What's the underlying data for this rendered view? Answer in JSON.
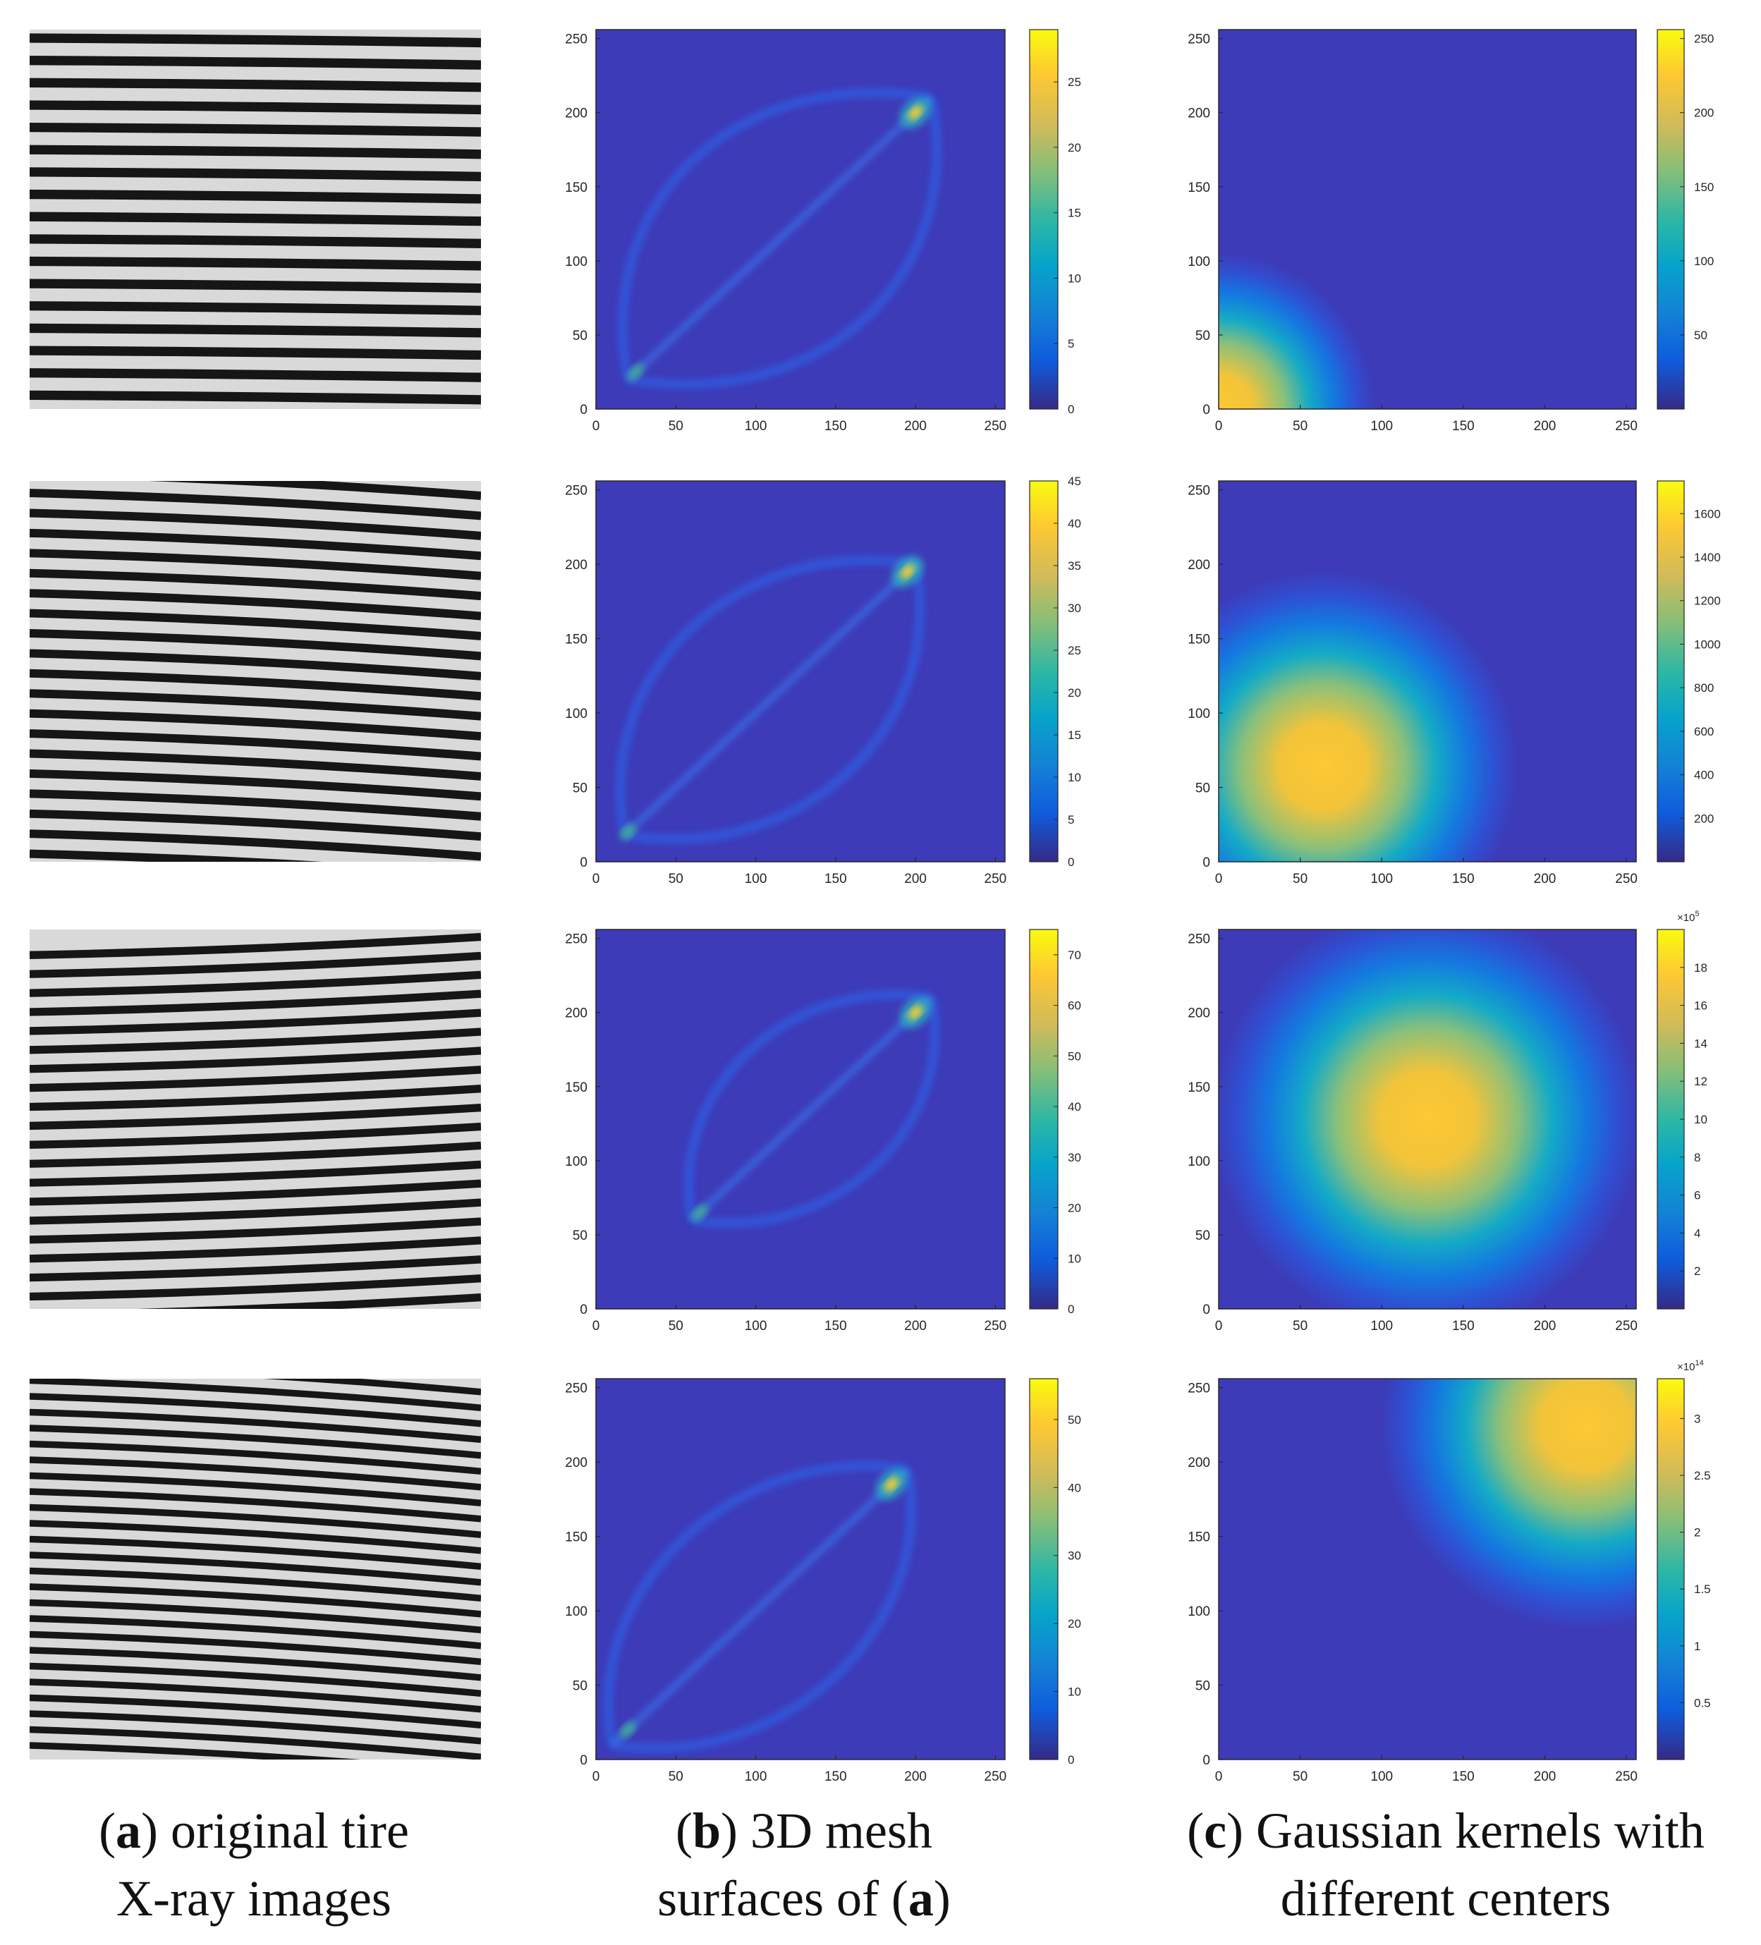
{
  "chart_data": [
    {
      "type": "image",
      "panel": "a",
      "row": 1,
      "stripes": 17,
      "bend": 0.01
    },
    {
      "type": "image",
      "panel": "a",
      "row": 2,
      "stripes": 19,
      "bend": 0.05
    },
    {
      "type": "image",
      "panel": "a",
      "row": 3,
      "stripes": 20,
      "bend": -0.04
    },
    {
      "type": "image",
      "panel": "a",
      "row": 4,
      "stripes": 24,
      "bend": 0.06
    },
    {
      "type": "heatmap",
      "panel": "b",
      "row": 1,
      "xlim": [
        0,
        256
      ],
      "ylim": [
        0,
        256
      ],
      "xticks": [
        0,
        50,
        100,
        150,
        200,
        250
      ],
      "yticks": [
        0,
        50,
        100,
        150,
        200,
        250
      ],
      "colorbar": {
        "min": 0,
        "max": 29,
        "ticks": [
          0,
          5,
          10,
          15,
          20,
          25
        ]
      },
      "peak": [
        200,
        200
      ],
      "low_peak": [
        25,
        25
      ],
      "loop_bulge": 55,
      "loop_start": 20,
      "loop_end": 210
    },
    {
      "type": "heatmap",
      "panel": "b",
      "row": 2,
      "xlim": [
        0,
        256
      ],
      "ylim": [
        0,
        256
      ],
      "xticks": [
        0,
        50,
        100,
        150,
        200,
        250
      ],
      "yticks": [
        0,
        50,
        100,
        150,
        200,
        250
      ],
      "colorbar": {
        "min": 0,
        "max": 45,
        "ticks": [
          0,
          5,
          10,
          15,
          20,
          25,
          30,
          35,
          40,
          45
        ]
      },
      "peak": [
        195,
        195
      ],
      "low_peak": [
        20,
        20
      ],
      "loop_bulge": 50,
      "loop_start": 18,
      "loop_end": 200
    },
    {
      "type": "heatmap",
      "panel": "b",
      "row": 3,
      "xlim": [
        0,
        256
      ],
      "ylim": [
        0,
        256
      ],
      "xticks": [
        0,
        50,
        100,
        150,
        200,
        250
      ],
      "yticks": [
        0,
        50,
        100,
        150,
        200,
        250
      ],
      "colorbar": {
        "min": 0,
        "max": 75,
        "ticks": [
          0,
          10,
          20,
          30,
          40,
          50,
          60,
          70
        ]
      },
      "peak": [
        200,
        200
      ],
      "low_peak": [
        65,
        65
      ],
      "loop_bulge": 40,
      "loop_start": 60,
      "loop_end": 210
    },
    {
      "type": "heatmap",
      "panel": "b",
      "row": 4,
      "xlim": [
        0,
        256
      ],
      "ylim": [
        0,
        256
      ],
      "xticks": [
        0,
        50,
        100,
        150,
        200,
        250
      ],
      "yticks": [
        0,
        50,
        100,
        150,
        200,
        250
      ],
      "colorbar": {
        "min": 0,
        "max": 56,
        "ticks": [
          0,
          10,
          20,
          30,
          40,
          50
        ]
      },
      "peak": [
        185,
        185
      ],
      "low_peak": [
        20,
        20
      ],
      "loop_bulge": 48,
      "loop_start": 10,
      "loop_end": 195
    },
    {
      "type": "heatmap",
      "panel": "c",
      "row": 1,
      "xlim": [
        0,
        256
      ],
      "ylim": [
        0,
        256
      ],
      "xticks": [
        0,
        50,
        100,
        150,
        200,
        250
      ],
      "yticks": [
        0,
        50,
        100,
        150,
        200,
        250
      ],
      "colorbar": {
        "min": 0,
        "max": 256,
        "ticks": [
          50,
          100,
          150,
          200,
          250
        ]
      },
      "center": [
        0,
        0
      ],
      "sigma": 32
    },
    {
      "type": "heatmap",
      "panel": "c",
      "row": 2,
      "xlim": [
        0,
        256
      ],
      "ylim": [
        0,
        256
      ],
      "xticks": [
        0,
        50,
        100,
        150,
        200,
        250
      ],
      "yticks": [
        0,
        50,
        100,
        150,
        200,
        250
      ],
      "colorbar": {
        "min": 0,
        "max": 1750,
        "ticks": [
          200,
          400,
          600,
          800,
          1000,
          1200,
          1400,
          1600
        ]
      },
      "center": [
        64,
        64
      ],
      "sigma": 40
    },
    {
      "type": "heatmap",
      "panel": "c",
      "row": 3,
      "xlim": [
        0,
        256
      ],
      "ylim": [
        0,
        256
      ],
      "xticks": [
        0,
        50,
        100,
        150,
        200,
        250
      ],
      "yticks": [
        0,
        50,
        100,
        150,
        200,
        250
      ],
      "colorbar": {
        "min": 0,
        "max": 20,
        "ticks": [
          2,
          4,
          6,
          8,
          10,
          12,
          14,
          16,
          18
        ],
        "multiplier": "×10",
        "exponent": "5"
      },
      "center": [
        128,
        128
      ],
      "sigma": 44
    },
    {
      "type": "heatmap",
      "panel": "c",
      "row": 4,
      "xlim": [
        0,
        256
      ],
      "ylim": [
        0,
        256
      ],
      "xticks": [
        0,
        50,
        100,
        150,
        200,
        250
      ],
      "yticks": [
        0,
        50,
        100,
        150,
        200,
        250
      ],
      "colorbar": {
        "min": 0,
        "max": 3.35,
        "ticks": [
          0.5,
          1,
          1.5,
          2,
          2.5,
          3
        ],
        "multiplier": "×10",
        "exponent": "14"
      },
      "center": [
        225,
        225
      ],
      "sigma": 42
    }
  ],
  "captions": {
    "a": {
      "letter": "a",
      "line1": ") original tire",
      "line2": "X-ray images"
    },
    "b": {
      "letter_b": "b",
      "line1": ") 3D mesh",
      "line2_pre": "surfaces of (",
      "letter_a": "a",
      "line2_post": ")"
    },
    "c": {
      "letter": "c",
      "line1": ") Gaussian kernels with",
      "line2": "different centers"
    }
  }
}
